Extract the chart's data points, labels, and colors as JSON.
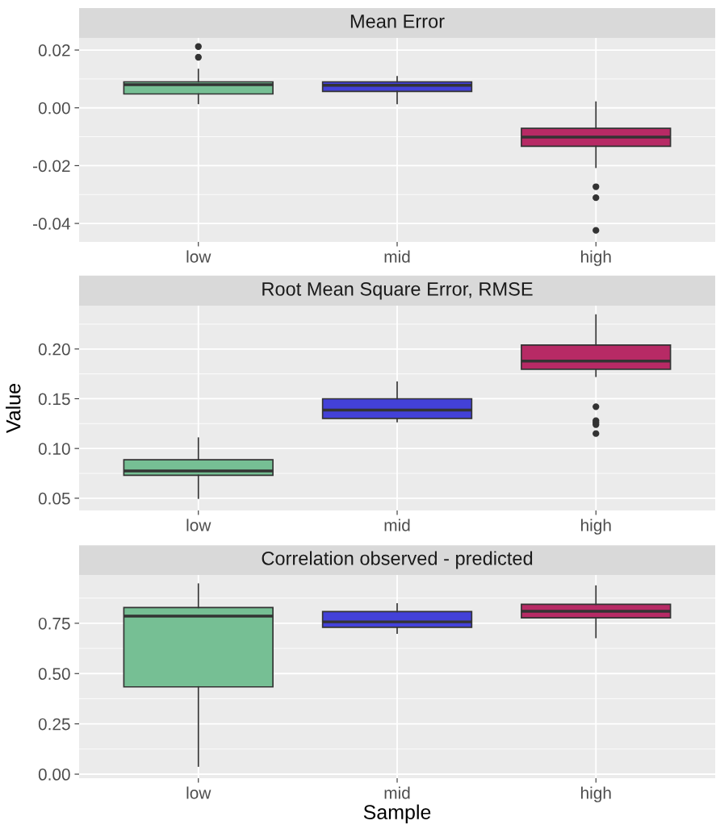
{
  "chart_data": [
    {
      "type": "box",
      "title": "Mean Error",
      "categories": [
        "low",
        "mid",
        "high"
      ],
      "colors": [
        "#76bf94",
        "#4341d8",
        "#b72a65"
      ],
      "ylim": [
        -0.0464,
        0.0242
      ],
      "yticks": [
        {
          "value": -0.04,
          "label": "-0.04"
        },
        {
          "value": -0.02,
          "label": "-0.02"
        },
        {
          "value": 0,
          "label": "0.00"
        },
        {
          "value": 0.02,
          "label": "0.02"
        }
      ],
      "grid": true,
      "boxes": [
        {
          "low": 0.0015,
          "q1": 0.0048,
          "median": 0.008,
          "q3": 0.009,
          "high": 0.0133,
          "outliers": [
            0.0175,
            0.0212
          ]
        },
        {
          "low": 0.0015,
          "q1": 0.0057,
          "median": 0.0078,
          "q3": 0.009,
          "high": 0.0108
        },
        {
          "low": -0.0206,
          "q1": -0.0133,
          "median": -0.0101,
          "q3": -0.0071,
          "high": 0.002,
          "outliers": [
            -0.0273,
            -0.0311,
            -0.0424
          ]
        }
      ]
    },
    {
      "type": "box",
      "title": "Root Mean Square Error, RMSE",
      "ylabel": "Value",
      "categories": [
        "low",
        "mid",
        "high"
      ],
      "colors": [
        "#76bf94",
        "#4341d8",
        "#b72a65"
      ],
      "ylim": [
        0.0377,
        0.2436
      ],
      "yticks": [
        {
          "value": 0.05,
          "label": "0.05"
        },
        {
          "value": 0.1,
          "label": "0.10"
        },
        {
          "value": 0.15,
          "label": "0.15"
        },
        {
          "value": 0.2,
          "label": "0.20"
        }
      ],
      "grid": true,
      "boxes": [
        {
          "low": 0.05,
          "q1": 0.073,
          "median": 0.0775,
          "q3": 0.0887,
          "high": 0.1105
        },
        {
          "low": 0.127,
          "q1": 0.1302,
          "median": 0.1387,
          "q3": 0.15,
          "high": 0.1667
        },
        {
          "low": 0.1725,
          "q1": 0.1797,
          "median": 0.1878,
          "q3": 0.204,
          "high": 0.2342,
          "outliers": [
            0.142,
            0.128,
            0.126,
            0.124,
            0.115
          ]
        }
      ]
    },
    {
      "type": "box",
      "title": "Correlation observed - predicted",
      "xlabel": "Sample",
      "categories": [
        "low",
        "mid",
        "high"
      ],
      "colors": [
        "#76bf94",
        "#4341d8",
        "#b72a65"
      ],
      "ylim": [
        -0.02,
        0.99
      ],
      "yticks": [
        {
          "value": 0,
          "label": "0.00"
        },
        {
          "value": 0.25,
          "label": "0.25"
        },
        {
          "value": 0.5,
          "label": "0.50"
        },
        {
          "value": 0.75,
          "label": "0.75"
        }
      ],
      "grid": true,
      "boxes": [
        {
          "low": 0.04,
          "q1": 0.434,
          "median": 0.786,
          "q3": 0.828,
          "high": 0.945
        },
        {
          "low": 0.701,
          "q1": 0.73,
          "median": 0.757,
          "q3": 0.808,
          "high": 0.846
        },
        {
          "low": 0.679,
          "q1": 0.777,
          "median": 0.81,
          "q3": 0.844,
          "high": 0.935
        }
      ]
    }
  ]
}
